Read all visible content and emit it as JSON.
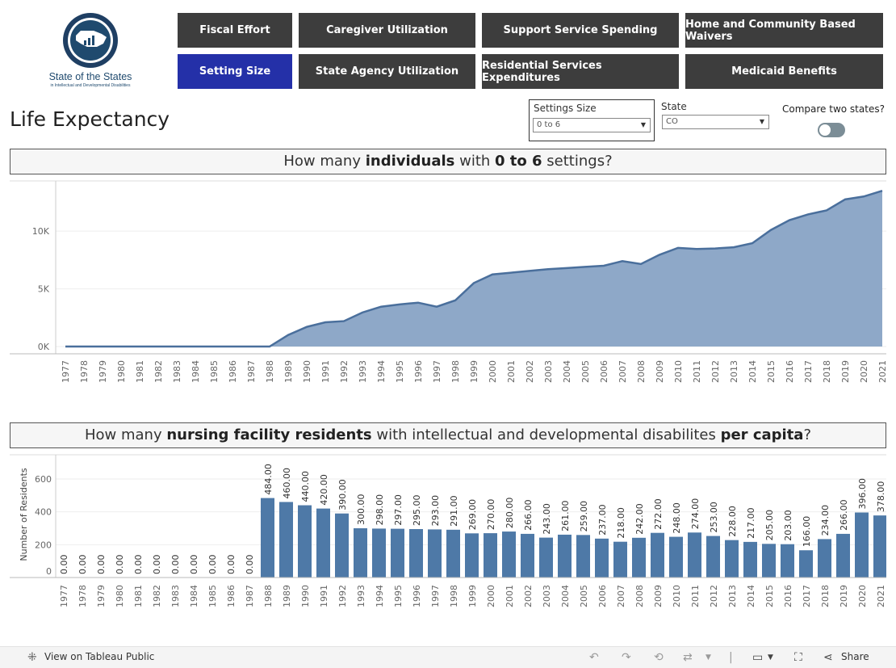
{
  "logo": {
    "line1": "State of the States",
    "line2": "in Intellectual and Developmental Disabilities"
  },
  "nav": {
    "row1": [
      "Fiscal Effort",
      "Caregiver Utilization",
      "Support Service Spending",
      "Home and Community Based Waivers"
    ],
    "row2": [
      "Setting Size",
      "State Agency Utilization",
      "Residential Services Expenditures",
      "Medicaid Benefits"
    ],
    "active": "Setting Size"
  },
  "page_title": "Life Expectancy",
  "filters": {
    "settings_label": "Settings Size",
    "settings_value": "0 to 6",
    "state_label": "State",
    "state_value": "CO",
    "compare_label": "Compare two states?"
  },
  "section1": {
    "pre": "How many ",
    "b1": "individuals",
    "mid": " with ",
    "b2": "0 to 6",
    "post": " settings?"
  },
  "section2": {
    "pre": "How many ",
    "b1": "nursing facility residents",
    "mid": " with intellectual and developmental disabilites ",
    "b2": "per capita",
    "post": "?"
  },
  "colors": {
    "series": "#4e79a7",
    "area": "#8ea8c8",
    "nav": "#3d3d3d",
    "nav_active": "#2430a8"
  },
  "chart_data": [
    {
      "type": "area",
      "x": [
        1977,
        1978,
        1979,
        1980,
        1981,
        1982,
        1983,
        1984,
        1985,
        1986,
        1987,
        1988,
        1989,
        1990,
        1991,
        1992,
        1993,
        1994,
        1995,
        1996,
        1997,
        1998,
        1999,
        2000,
        2001,
        2002,
        2003,
        2004,
        2005,
        2006,
        2007,
        2008,
        2009,
        2010,
        2011,
        2012,
        2013,
        2014,
        2015,
        2016,
        2017,
        2018,
        2019,
        2020,
        2021
      ],
      "x_tick_labels": [
        "1977",
        "1978",
        "1979",
        "1980",
        "1981",
        "1982",
        "1983",
        "1984",
        "1985",
        "1986",
        "1987",
        "1988",
        "1989",
        "1990",
        "1991",
        "1992",
        "1993",
        "1994",
        "1995",
        "1996",
        "1997",
        "1998",
        "1999",
        "2000",
        "2001",
        "2002",
        "2003",
        "2004",
        "2005",
        "2006",
        "2007",
        "2008",
        "2009",
        "2010",
        "2011",
        "2012",
        "2013",
        "2014",
        "2015",
        "2016",
        "2017",
        "2018",
        "2019",
        "2020",
        "2021"
      ],
      "values": [
        0,
        0,
        0,
        0,
        0,
        0,
        0,
        0,
        0,
        0,
        0,
        0,
        1000,
        1700,
        2100,
        2200,
        2950,
        3450,
        3650,
        3800,
        3450,
        4000,
        5500,
        6250,
        6400,
        6550,
        6700,
        6800,
        6900,
        7000,
        7400,
        7150,
        7950,
        8550,
        8450,
        8500,
        8600,
        8950,
        10100,
        10950,
        11450,
        11800,
        12750,
        13000,
        13500
      ],
      "y_ticks": [
        "0K",
        "5K",
        "10K"
      ],
      "ylim": [
        0,
        14000
      ],
      "grid": true
    },
    {
      "type": "bar",
      "categories": [
        "1977",
        "1978",
        "1979",
        "1980",
        "1981",
        "1982",
        "1983",
        "1984",
        "1985",
        "1986",
        "1987",
        "1988",
        "1989",
        "1990",
        "1991",
        "1992",
        "1993",
        "1994",
        "1995",
        "1996",
        "1997",
        "1998",
        "1999",
        "2000",
        "2001",
        "2002",
        "2003",
        "2004",
        "2005",
        "2006",
        "2007",
        "2008",
        "2009",
        "2010",
        "2011",
        "2012",
        "2013",
        "2014",
        "2015",
        "2016",
        "2017",
        "2018",
        "2019",
        "2020",
        "2021"
      ],
      "values": [
        0,
        0,
        0,
        0,
        0,
        0,
        0,
        0,
        0,
        0,
        0,
        484,
        460,
        440,
        420,
        390,
        300,
        298,
        297,
        295,
        293,
        291,
        269,
        270,
        280,
        266,
        243,
        261,
        259,
        237,
        218,
        242,
        272,
        248,
        274,
        253,
        228,
        217,
        205,
        203,
        166,
        234,
        266,
        396,
        378
      ],
      "data_labels": [
        "0.00",
        "0.00",
        "0.00",
        "0.00",
        "0.00",
        "0.00",
        "0.00",
        "0.00",
        "0.00",
        "0.00",
        "0.00",
        "484.00",
        "460.00",
        "440.00",
        "420.00",
        "390.00",
        "300.00",
        "298.00",
        "297.00",
        "295.00",
        "293.00",
        "291.00",
        "269.00",
        "270.00",
        "280.00",
        "266.00",
        "243.00",
        "261.00",
        "259.00",
        "237.00",
        "218.00",
        "242.00",
        "272.00",
        "248.00",
        "274.00",
        "253.00",
        "228.00",
        "217.00",
        "205.00",
        "203.00",
        "166.00",
        "234.00",
        "266.00",
        "396.00",
        "378.00"
      ],
      "ylabel": "Number of Residents",
      "y_ticks": [
        "0",
        "200",
        "400",
        "600"
      ],
      "ylim": [
        0,
        700
      ],
      "grid": true
    }
  ],
  "footer": {
    "view_label": "View on Tableau Public",
    "share_label": "Share"
  }
}
